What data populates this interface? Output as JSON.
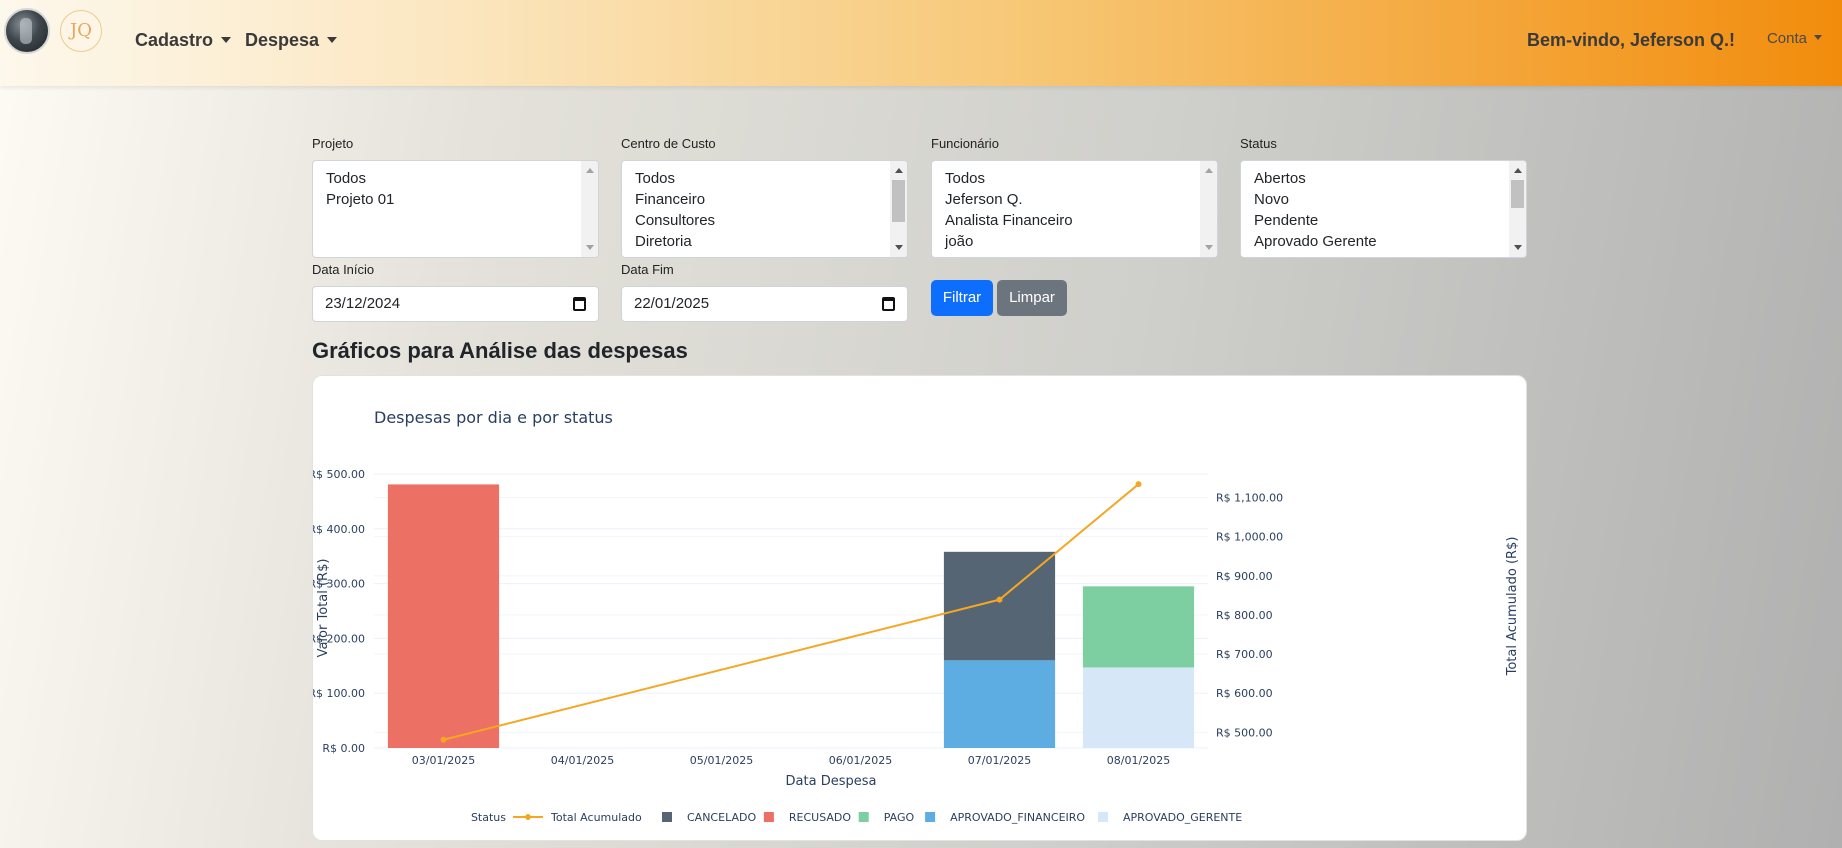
{
  "navbar": {
    "logo_text": "JQ",
    "menu": [
      {
        "label": "Cadastro"
      },
      {
        "label": "Despesa"
      }
    ],
    "welcome": "Bem-vindo, Jeferson Q.!",
    "account": "Conta"
  },
  "filters": {
    "projeto": {
      "label": "Projeto",
      "options": [
        "Todos",
        "Projeto 01"
      ]
    },
    "centro_custo": {
      "label": "Centro de Custo",
      "options": [
        "Todos",
        "Financeiro",
        "Consultores",
        "Diretoria"
      ]
    },
    "funcionario": {
      "label": "Funcionário",
      "options": [
        "Todos",
        "Jeferson Q.",
        "Analista Financeiro",
        "joão"
      ]
    },
    "status": {
      "label": "Status",
      "options": [
        "Abertos",
        "Novo",
        "Pendente",
        "Aprovado Gerente"
      ]
    },
    "data_inicio": {
      "label": "Data Início",
      "value": "23/12/2024"
    },
    "data_fim": {
      "label": "Data Fim",
      "value": "22/01/2025"
    },
    "filtrar_label": "Filtrar",
    "limpar_label": "Limpar"
  },
  "section_title": "Gráficos para Análise das despesas",
  "chart_data": {
    "type": "bar",
    "stacked": true,
    "title": "Despesas por dia e por status",
    "xlabel": "Data Despesa",
    "ylabel": "Valor Total (R$)",
    "y2label": "Total Acumulado (R$)",
    "categories": [
      "03/01/2025",
      "04/01/2025",
      "05/01/2025",
      "06/01/2025",
      "07/01/2025",
      "08/01/2025"
    ],
    "ylim": [
      0,
      500
    ],
    "yticks": [
      "R$ 0.00",
      "R$ 100.00",
      "R$ 200.00",
      "R$ 300.00",
      "R$ 400.00",
      "R$ 500.00"
    ],
    "y2lim": [
      460,
      1160
    ],
    "y2ticks": [
      "R$ 500.00",
      "R$ 600.00",
      "R$ 700.00",
      "R$ 800.00",
      "R$ 900.00",
      "R$ 1,000.00",
      "R$ 1,100.00"
    ],
    "legend_title": "Status",
    "series": [
      {
        "name": "APROVADO_GERENTE",
        "color": "#d6e8f7",
        "values": [
          0,
          0,
          0,
          0,
          0,
          147
        ]
      },
      {
        "name": "APROVADO_FINANCEIRO",
        "color": "#5dade2",
        "values": [
          0,
          0,
          0,
          0,
          160,
          0
        ]
      },
      {
        "name": "PAGO",
        "color": "#7dcea0",
        "values": [
          0,
          0,
          0,
          0,
          0,
          148
        ]
      },
      {
        "name": "RECUSADO",
        "color": "#ec7063",
        "values": [
          481,
          0,
          0,
          0,
          0,
          0
        ]
      },
      {
        "name": "CANCELADO",
        "color": "#566573",
        "values": [
          0,
          0,
          0,
          0,
          198,
          0
        ]
      }
    ],
    "line": {
      "name": "Total Acumulado",
      "color": "#f5a623",
      "points": [
        {
          "category": "03/01/2025",
          "value": 481
        },
        {
          "category": "07/01/2025",
          "value": 839
        },
        {
          "category": "08/01/2025",
          "value": 1134
        }
      ]
    },
    "legend_order": [
      "Total Acumulado",
      "CANCELADO",
      "RECUSADO",
      "PAGO",
      "APROVADO_FINANCEIRO",
      "APROVADO_GERENTE"
    ]
  }
}
